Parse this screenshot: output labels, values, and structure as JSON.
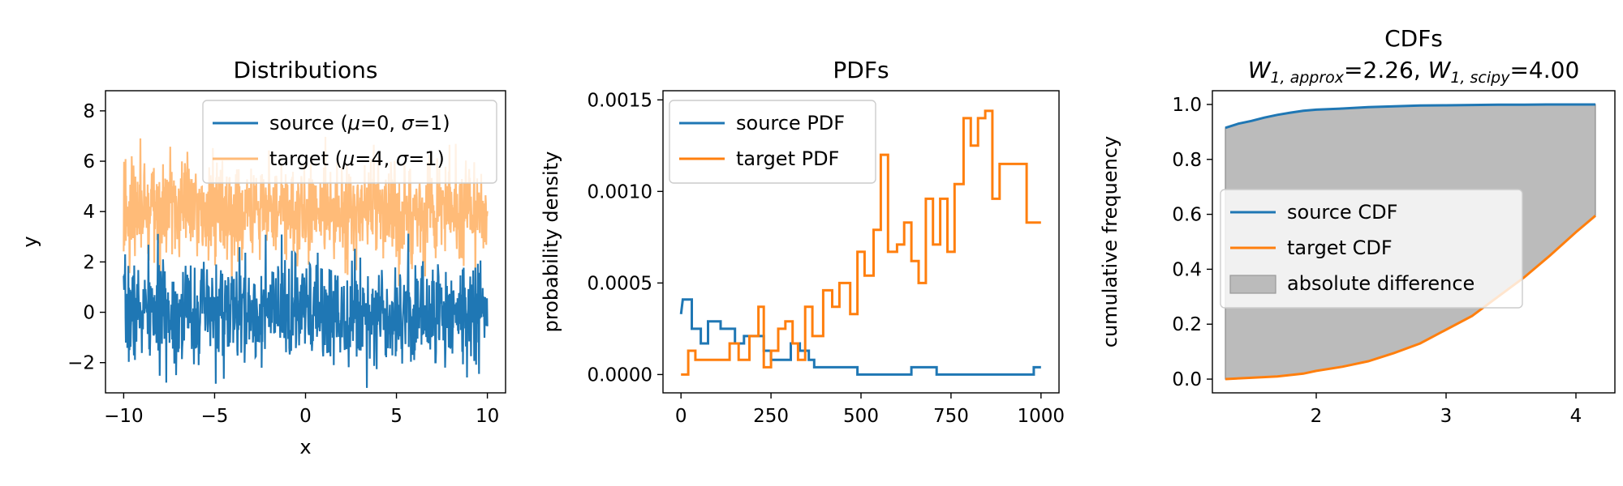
{
  "chart_data": [
    {
      "type": "line",
      "title": "Distributions",
      "xlabel": "x",
      "ylabel": "y",
      "xlim": [
        -11,
        11
      ],
      "ylim": [
        -3.2,
        8.8
      ],
      "xticks": [
        -10,
        -5,
        0,
        5,
        10
      ],
      "xtick_labels": [
        "−10",
        "−5",
        "0",
        "5",
        "10"
      ],
      "yticks": [
        -2,
        0,
        2,
        4,
        6,
        8
      ],
      "ytick_labels": [
        "−2",
        "0",
        "2",
        "4",
        "6",
        "8"
      ],
      "legend_position": "top-right",
      "series": [
        {
          "name": "source (μ=0, σ=1)",
          "label_parts": [
            "source (",
            "μ",
            "=0, ",
            "σ",
            "=1)"
          ],
          "color": "#1f77b4",
          "mean": 0,
          "std": 1,
          "x_range": [
            -10,
            10
          ],
          "n": 1000
        },
        {
          "name": "target (μ=4, σ=1)",
          "label_parts": [
            "target (",
            "μ",
            "=4, ",
            "σ",
            "=1)"
          ],
          "color": "#ffbb78",
          "alpha": 0.5,
          "mean": 4,
          "std": 1,
          "x_range": [
            -10,
            10
          ],
          "n": 1000
        }
      ]
    },
    {
      "type": "line",
      "title": "PDFs",
      "xlabel": "",
      "ylabel": "probability density",
      "xlim": [
        -50,
        1050
      ],
      "ylim": [
        -0.0001,
        0.00155
      ],
      "xticks": [
        0,
        250,
        500,
        750,
        1000
      ],
      "xtick_labels": [
        "0",
        "250",
        "500",
        "750",
        "1000"
      ],
      "yticks": [
        0,
        0.0005,
        0.001,
        0.0015
      ],
      "ytick_labels": [
        "0.0000",
        "0.0005",
        "0.0010",
        "0.0015"
      ],
      "legend_position": "top-left",
      "series": [
        {
          "name": "source PDF",
          "color": "#1f77b4",
          "points": [
            [
              0,
              0.00033
            ],
            [
              5,
              0.00041
            ],
            [
              30,
              0.00041
            ],
            [
              30,
              0.00025
            ],
            [
              55,
              0.00025
            ],
            [
              55,
              0.00017
            ],
            [
              75,
              0.00017
            ],
            [
              75,
              0.00029
            ],
            [
              110,
              0.00029
            ],
            [
              110,
              0.00025
            ],
            [
              150,
              0.00025
            ],
            [
              150,
              0.00017
            ],
            [
              175,
              0.00017
            ],
            [
              175,
              0.00021
            ],
            [
              230,
              0.00021
            ],
            [
              230,
              0.00013
            ],
            [
              250,
              0.00013
            ],
            [
              250,
              8e-05
            ],
            [
              305,
              8e-05
            ],
            [
              305,
              0.00017
            ],
            [
              330,
              0.00017
            ],
            [
              330,
              0.00013
            ],
            [
              355,
              0.00013
            ],
            [
              355,
              8e-05
            ],
            [
              370,
              8e-05
            ],
            [
              370,
              4e-05
            ],
            [
              490,
              4e-05
            ],
            [
              490,
              0.0
            ],
            [
              640,
              0.0
            ],
            [
              640,
              4e-05
            ],
            [
              710,
              4e-05
            ],
            [
              710,
              0.0
            ],
            [
              980,
              0.0
            ],
            [
              980,
              4e-05
            ],
            [
              1000,
              4e-05
            ]
          ]
        },
        {
          "name": "target PDF",
          "color": "#ff7f0e",
          "points": [
            [
              0,
              0.0
            ],
            [
              20,
              0.0
            ],
            [
              20,
              0.00013
            ],
            [
              40,
              0.00013
            ],
            [
              40,
              8e-05
            ],
            [
              135,
              8e-05
            ],
            [
              135,
              0.00017
            ],
            [
              160,
              0.00017
            ],
            [
              160,
              8e-05
            ],
            [
              190,
              8e-05
            ],
            [
              190,
              0.00021
            ],
            [
              215,
              0.00021
            ],
            [
              215,
              0.00037
            ],
            [
              230,
              0.00037
            ],
            [
              230,
              4e-05
            ],
            [
              250,
              4e-05
            ],
            [
              250,
              0.00013
            ],
            [
              270,
              0.00013
            ],
            [
              270,
              0.00025
            ],
            [
              290,
              0.00025
            ],
            [
              290,
              0.00029
            ],
            [
              310,
              0.00029
            ],
            [
              310,
              0.00017
            ],
            [
              325,
              0.00017
            ],
            [
              325,
              8e-05
            ],
            [
              345,
              8e-05
            ],
            [
              345,
              0.00037
            ],
            [
              365,
              0.00037
            ],
            [
              365,
              0.00021
            ],
            [
              395,
              0.00021
            ],
            [
              395,
              0.00046
            ],
            [
              420,
              0.00046
            ],
            [
              420,
              0.00037
            ],
            [
              440,
              0.00037
            ],
            [
              440,
              0.0005
            ],
            [
              470,
              0.0005
            ],
            [
              470,
              0.00033
            ],
            [
              490,
              0.00033
            ],
            [
              490,
              0.00067
            ],
            [
              510,
              0.00067
            ],
            [
              510,
              0.00054
            ],
            [
              535,
              0.00054
            ],
            [
              535,
              0.00079
            ],
            [
              555,
              0.00079
            ],
            [
              555,
              0.0012
            ],
            [
              575,
              0.0012
            ],
            [
              575,
              0.00067
            ],
            [
              600,
              0.00067
            ],
            [
              600,
              0.00071
            ],
            [
              620,
              0.00071
            ],
            [
              620,
              0.00083
            ],
            [
              640,
              0.00083
            ],
            [
              640,
              0.00062
            ],
            [
              660,
              0.00062
            ],
            [
              660,
              0.0005
            ],
            [
              680,
              0.0005
            ],
            [
              680,
              0.00096
            ],
            [
              700,
              0.00096
            ],
            [
              700,
              0.00071
            ],
            [
              720,
              0.00071
            ],
            [
              720,
              0.00096
            ],
            [
              740,
              0.00096
            ],
            [
              740,
              0.00067
            ],
            [
              760,
              0.00067
            ],
            [
              760,
              0.00104
            ],
            [
              785,
              0.00104
            ],
            [
              785,
              0.0014
            ],
            [
              805,
              0.0014
            ],
            [
              805,
              0.00125
            ],
            [
              825,
              0.00125
            ],
            [
              825,
              0.0014
            ],
            [
              845,
              0.0014
            ],
            [
              845,
              0.00144
            ],
            [
              865,
              0.00144
            ],
            [
              865,
              0.00096
            ],
            [
              885,
              0.00096
            ],
            [
              885,
              0.00115
            ],
            [
              960,
              0.00115
            ],
            [
              960,
              0.00083
            ],
            [
              1000,
              0.00083
            ]
          ]
        }
      ]
    },
    {
      "type": "area",
      "title": "CDFs",
      "title_line2_parts": [
        {
          "t": "W",
          "style": "italic"
        },
        {
          "t": "1, approx",
          "style": "italic-sub"
        },
        {
          "t": "=2.26, ",
          "style": "normal"
        },
        {
          "t": "W",
          "style": "italic"
        },
        {
          "t": "1, scipy",
          "style": "italic-sub"
        },
        {
          "t": "=4.00",
          "style": "normal"
        }
      ],
      "xlabel": "",
      "ylabel": "cumulative frequency",
      "xlim": [
        1.2,
        4.3
      ],
      "ylim": [
        -0.05,
        1.05
      ],
      "xticks": [
        2,
        3,
        4
      ],
      "xtick_labels": [
        "2",
        "3",
        "4"
      ],
      "yticks": [
        0,
        0.2,
        0.4,
        0.6,
        0.8,
        1.0
      ],
      "ytick_labels": [
        "0.0",
        "0.2",
        "0.4",
        "0.6",
        "0.8",
        "1.0"
      ],
      "legend_position": "center-left",
      "fill_color": "#bbbbbb",
      "series": [
        {
          "name": "source CDF",
          "color": "#1f77b4",
          "points": [
            [
              1.3,
              0.915
            ],
            [
              1.4,
              0.93
            ],
            [
              1.5,
              0.94
            ],
            [
              1.6,
              0.952
            ],
            [
              1.7,
              0.962
            ],
            [
              1.8,
              0.97
            ],
            [
              1.9,
              0.977
            ],
            [
              2.0,
              0.981
            ],
            [
              2.2,
              0.985
            ],
            [
              2.4,
              0.99
            ],
            [
              2.6,
              0.993
            ],
            [
              2.8,
              0.996
            ],
            [
              3.0,
              0.997
            ],
            [
              3.2,
              0.998
            ],
            [
              3.4,
              0.999
            ],
            [
              3.6,
              0.999
            ],
            [
              3.8,
              1.0
            ],
            [
              4.0,
              1.0
            ],
            [
              4.15,
              1.0
            ]
          ]
        },
        {
          "name": "target CDF",
          "color": "#ff7f0e",
          "points": [
            [
              1.3,
              0.0
            ],
            [
              1.5,
              0.005
            ],
            [
              1.7,
              0.01
            ],
            [
              1.9,
              0.02
            ],
            [
              2.0,
              0.03
            ],
            [
              2.2,
              0.045
            ],
            [
              2.4,
              0.065
            ],
            [
              2.6,
              0.095
            ],
            [
              2.8,
              0.13
            ],
            [
              3.0,
              0.18
            ],
            [
              3.2,
              0.23
            ],
            [
              3.4,
              0.3
            ],
            [
              3.6,
              0.37
            ],
            [
              3.8,
              0.45
            ],
            [
              4.0,
              0.535
            ],
            [
              4.15,
              0.595
            ]
          ]
        },
        {
          "name": "absolute difference",
          "color": "#bbbbbb"
        }
      ]
    }
  ]
}
